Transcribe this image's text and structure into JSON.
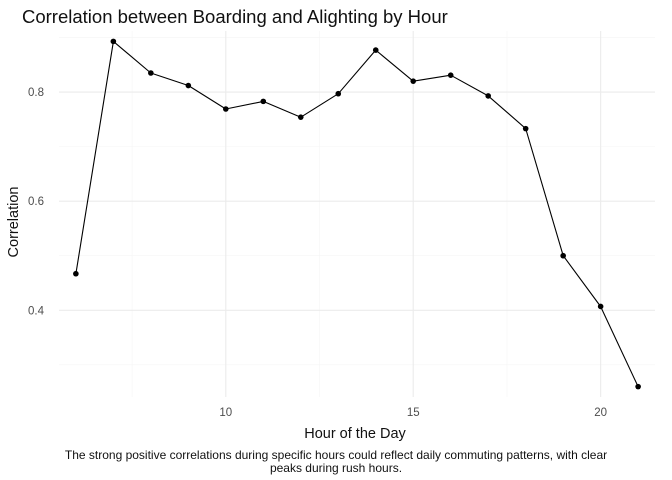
{
  "chart_data": {
    "type": "line",
    "title": "Correlation between Boarding and Alighting by Hour",
    "xlabel": "Hour of the Day",
    "ylabel": "Correlation",
    "caption": "The strong positive correlations during specific hours could reflect daily commuting patterns, with clear peaks during rush hours.",
    "x": [
      6,
      7,
      8,
      9,
      10,
      11,
      12,
      13,
      14,
      15,
      16,
      17,
      18,
      19,
      20,
      21
    ],
    "series": [
      {
        "values": [
          0.467,
          0.893,
          0.835,
          0.812,
          0.769,
          0.783,
          0.754,
          0.797,
          0.877,
          0.82,
          0.831,
          0.793,
          0.733,
          0.5,
          0.407,
          0.26
        ]
      }
    ],
    "xlim": [
      5.55,
      21.45
    ],
    "ylim": [
      0.241,
      0.912
    ],
    "x_ticks": [
      10,
      15,
      20
    ],
    "x_tick_labels": [
      "10",
      "15",
      "20"
    ],
    "y_ticks": [
      0.4,
      0.6,
      0.8
    ],
    "y_tick_labels": [
      "0.4",
      "0.6",
      "0.8"
    ],
    "x_minor_ticks": [
      7.5,
      12.5,
      17.5
    ],
    "y_minor_ticks": [
      0.3,
      0.5,
      0.7,
      0.9
    ],
    "grid": true,
    "legend": "none",
    "colors": {
      "line": "#000000",
      "point": "#000000",
      "grid_major": "#ebebeb",
      "grid_minor": "#f5f5f5",
      "tick_text": "#4d4d4d"
    }
  }
}
